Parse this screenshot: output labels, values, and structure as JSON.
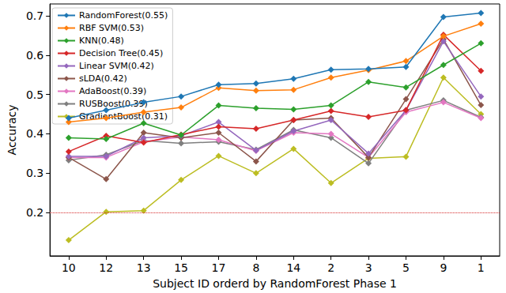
{
  "chart_data": {
    "type": "line",
    "x_label": "Subject ID orderd by RandomForest Phase 1",
    "y_label": "Accuracy",
    "categories": [
      "10",
      "12",
      "13",
      "15",
      "17",
      "8",
      "14",
      "2",
      "3",
      "5",
      "9",
      "1"
    ],
    "series": [
      {
        "name": "RandomForest(0.55)",
        "color": "#1f77b4",
        "values": [
          0.44,
          0.46,
          0.48,
          0.495,
          0.525,
          0.528,
          0.54,
          0.563,
          0.565,
          0.57,
          0.697,
          0.707
        ]
      },
      {
        "name": "RBF SVM(0.53)",
        "color": "#ff7f0e",
        "values": [
          0.43,
          0.44,
          0.455,
          0.467,
          0.517,
          0.51,
          0.512,
          0.543,
          0.562,
          0.585,
          0.648,
          0.68
        ]
      },
      {
        "name": "KNN(0.48)",
        "color": "#2ca02c",
        "values": [
          0.39,
          0.387,
          0.427,
          0.397,
          0.472,
          0.465,
          0.462,
          0.472,
          0.532,
          0.518,
          0.575,
          0.63
        ]
      },
      {
        "name": "Decision Tree(0.45)",
        "color": "#d62728",
        "values": [
          0.355,
          0.395,
          0.378,
          0.398,
          0.418,
          0.413,
          0.435,
          0.458,
          0.443,
          0.46,
          0.652,
          0.56
        ]
      },
      {
        "name": "Linear SVM(0.42)",
        "color": "#9467bd",
        "values": [
          0.343,
          0.343,
          0.39,
          0.395,
          0.43,
          0.358,
          0.407,
          0.435,
          0.35,
          0.46,
          0.635,
          0.495
        ]
      },
      {
        "name": "sLDA(0.42)",
        "color": "#8c564b",
        "values": [
          0.34,
          0.285,
          0.403,
          0.39,
          0.403,
          0.33,
          0.435,
          0.44,
          0.34,
          0.488,
          0.64,
          0.473
        ]
      },
      {
        "name": "AdaBoost(0.39)",
        "color": "#e377c2",
        "values": [
          0.34,
          0.34,
          0.38,
          0.392,
          0.385,
          0.357,
          0.403,
          0.4,
          0.34,
          0.455,
          0.48,
          0.44
        ]
      },
      {
        "name": "RUSBoost(0.39)",
        "color": "#7f7f7f",
        "values": [
          0.333,
          0.347,
          0.383,
          0.376,
          0.38,
          0.36,
          0.41,
          0.39,
          0.325,
          0.46,
          0.485,
          0.442
        ]
      },
      {
        "name": "GradientBoost(0.31)",
        "color": "#bcbd22",
        "values": [
          0.13,
          0.202,
          0.205,
          0.283,
          0.344,
          0.3,
          0.362,
          0.275,
          0.338,
          0.342,
          0.543,
          0.45
        ]
      }
    ],
    "marker": "diamond",
    "line_style": "solid",
    "ylim": [
      0.09,
      0.73
    ],
    "yticks": [
      0.2,
      0.3,
      0.4,
      0.5,
      0.6,
      0.7
    ],
    "grid": false,
    "legend": "upper left",
    "hline": {
      "y": 0.2,
      "color": "#d62728",
      "line_style": "dotted"
    }
  }
}
